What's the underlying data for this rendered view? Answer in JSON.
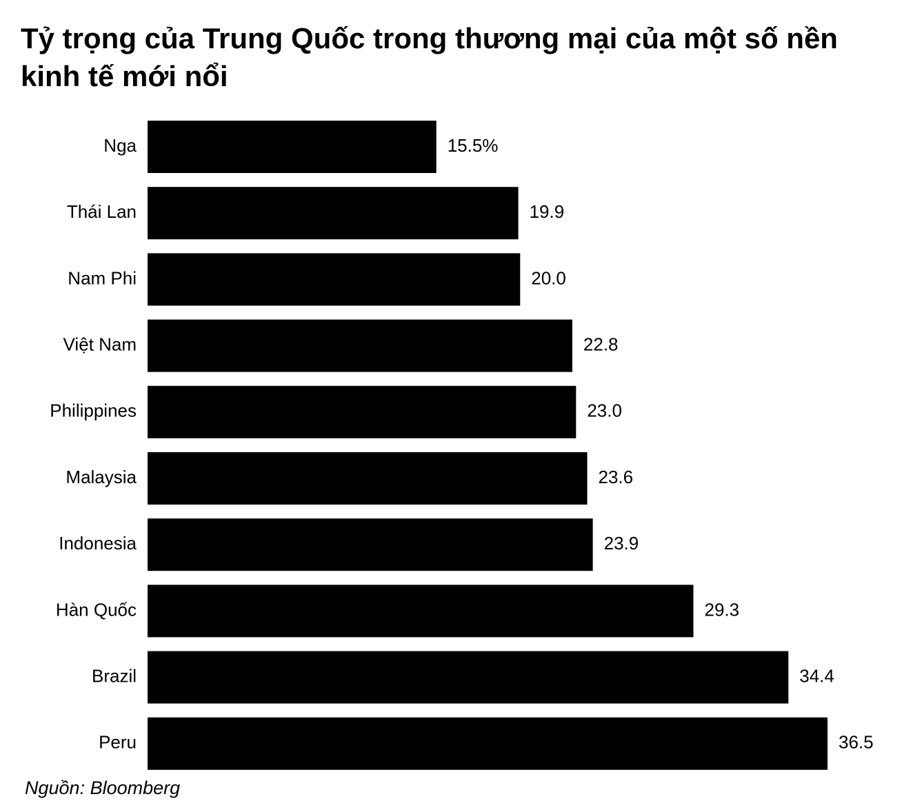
{
  "chart_data": {
    "type": "hbar",
    "title": "Tỷ trọng của Trung Quốc trong thương mại của một số nền kinh tế mới nổi",
    "categories": [
      "Nga",
      "Thái Lan",
      "Nam Phi",
      "Việt Nam",
      "Philippines",
      "Malaysia",
      "Indonesia",
      "Hàn Quốc",
      "Brazil",
      "Peru"
    ],
    "values": [
      15.5,
      19.9,
      20.0,
      22.8,
      23.0,
      23.6,
      23.9,
      29.3,
      34.4,
      36.5
    ],
    "value_labels": [
      "15.5%",
      "19.9",
      "20.0",
      "22.8",
      "23.0",
      "23.6",
      "23.9",
      "29.3",
      "34.4",
      "36.5"
    ],
    "color": "#000000",
    "source": "Nguồn: Bloomberg"
  }
}
